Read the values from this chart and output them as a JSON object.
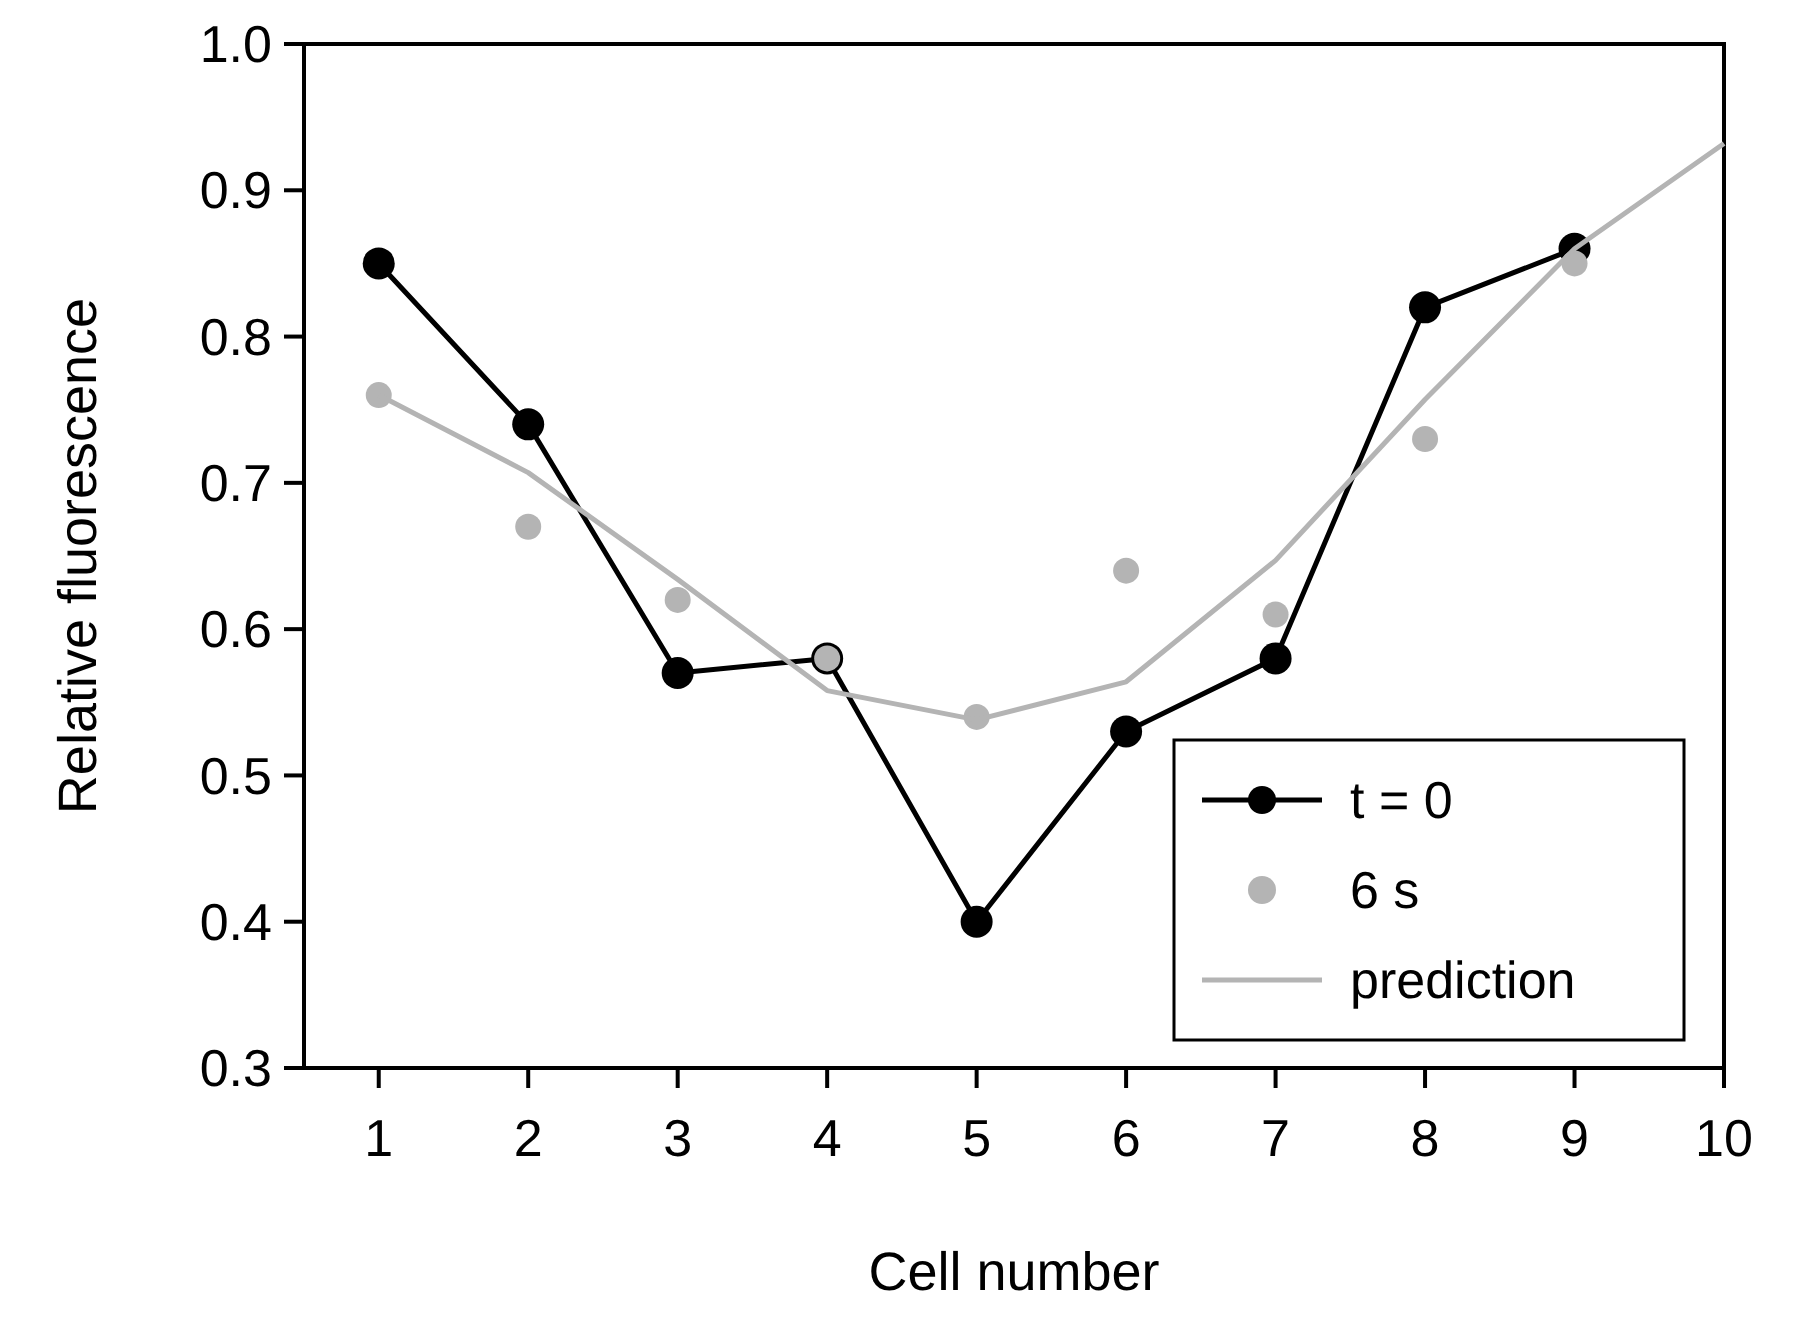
{
  "chart_data": {
    "type": "line",
    "xlabel": "Cell number",
    "ylabel": "Relative fluorescence",
    "xlim": [
      0.5,
      10
    ],
    "xticks": [
      1,
      2,
      3,
      4,
      5,
      6,
      7,
      8,
      9,
      10
    ],
    "ylim": [
      0.3,
      1.0
    ],
    "yticks": [
      0.3,
      0.4,
      0.5,
      0.6,
      0.7,
      0.8,
      0.9,
      {
        "value": 1,
        "label": "1.0"
      }
    ],
    "grid": false,
    "legend": "bottom right",
    "series": [
      {
        "name": "t = 0",
        "marker": "circle",
        "color": "#000000",
        "x": [
          1,
          2,
          3,
          4,
          5,
          6,
          7,
          8,
          9
        ],
        "values": [
          0.85,
          0.74,
          0.57,
          0.58,
          0.4,
          0.53,
          0.58,
          0.82,
          0.86
        ]
      },
      {
        "name": "6 s",
        "type": "scatter",
        "marker": "circle",
        "color": "#b4b4b4",
        "x": [
          1,
          2,
          3,
          4,
          5,
          6,
          7,
          8,
          9
        ],
        "values": [
          0.76,
          0.67,
          0.62,
          0.58,
          0.54,
          0.64,
          0.61,
          0.73,
          0.85
        ]
      },
      {
        "name": "prediction",
        "marker": "none",
        "color": "#b4b4b4",
        "x": [
          1,
          2,
          3,
          4,
          5,
          6,
          7,
          8,
          9,
          10
        ],
        "values": [
          0.76,
          0.707,
          0.634,
          0.558,
          0.538,
          0.564,
          0.647,
          0.757,
          0.86,
          0.932
        ]
      }
    ]
  }
}
